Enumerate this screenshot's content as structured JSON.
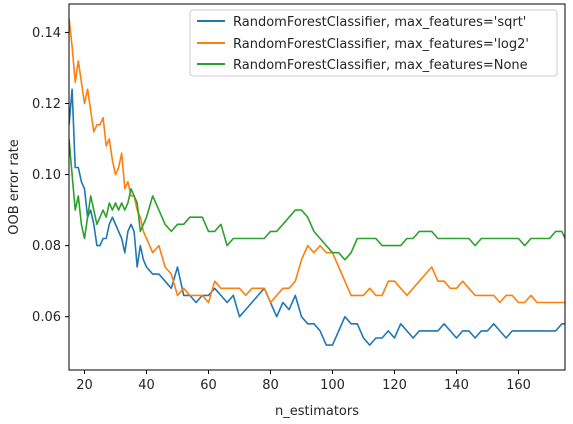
{
  "chart_data": {
    "type": "line",
    "title": "",
    "xlabel": "n_estimators",
    "ylabel": "OOB error rate",
    "xlim": [
      15,
      175
    ],
    "ylim": [
      0.045,
      0.148
    ],
    "xticks": [
      20,
      40,
      60,
      80,
      100,
      120,
      140,
      160
    ],
    "yticks": [
      0.06,
      0.08,
      0.1,
      0.12,
      0.14
    ],
    "ytick_labels": [
      "0.06",
      "0.08",
      "0.10",
      "0.12",
      "0.14"
    ],
    "grid": false,
    "legend_position": "top-right",
    "series": [
      {
        "name": "RandomForestClassifier, max_features='sqrt'",
        "color": "#1f77b4",
        "x": [
          15,
          16,
          17,
          18,
          19,
          20,
          21,
          22,
          23,
          24,
          25,
          26,
          27,
          28,
          29,
          30,
          31,
          32,
          33,
          34,
          35,
          36,
          37,
          38,
          39,
          40,
          42,
          44,
          46,
          48,
          50,
          52,
          54,
          56,
          58,
          60,
          62,
          64,
          66,
          68,
          70,
          72,
          74,
          76,
          78,
          80,
          82,
          84,
          86,
          88,
          90,
          92,
          94,
          96,
          98,
          100,
          102,
          104,
          106,
          108,
          110,
          112,
          114,
          116,
          118,
          120,
          122,
          124,
          126,
          128,
          130,
          132,
          134,
          136,
          138,
          140,
          142,
          144,
          146,
          148,
          150,
          152,
          154,
          156,
          158,
          160,
          162,
          164,
          166,
          168,
          170,
          172,
          174,
          175
        ],
        "y": [
          0.114,
          0.124,
          0.102,
          0.102,
          0.098,
          0.096,
          0.088,
          0.09,
          0.086,
          0.08,
          0.08,
          0.082,
          0.082,
          0.086,
          0.088,
          0.086,
          0.084,
          0.082,
          0.078,
          0.084,
          0.086,
          0.084,
          0.074,
          0.08,
          0.076,
          0.074,
          0.072,
          0.072,
          0.07,
          0.068,
          0.074,
          0.066,
          0.066,
          0.064,
          0.066,
          0.066,
          0.068,
          0.066,
          0.064,
          0.066,
          0.06,
          0.062,
          0.064,
          0.066,
          0.068,
          0.064,
          0.06,
          0.064,
          0.062,
          0.066,
          0.06,
          0.058,
          0.058,
          0.056,
          0.052,
          0.052,
          0.056,
          0.06,
          0.058,
          0.058,
          0.054,
          0.052,
          0.054,
          0.054,
          0.056,
          0.054,
          0.058,
          0.056,
          0.054,
          0.056,
          0.056,
          0.056,
          0.056,
          0.058,
          0.056,
          0.054,
          0.056,
          0.056,
          0.054,
          0.056,
          0.056,
          0.058,
          0.056,
          0.054,
          0.056,
          0.056,
          0.056,
          0.056,
          0.056,
          0.056,
          0.056,
          0.056,
          0.058,
          0.058
        ]
      },
      {
        "name": "RandomForestClassifier, max_features='log2'",
        "color": "#ff7f0e",
        "x": [
          15,
          16,
          17,
          18,
          19,
          20,
          21,
          22,
          23,
          24,
          25,
          26,
          27,
          28,
          29,
          30,
          31,
          32,
          33,
          34,
          35,
          36,
          37,
          38,
          39,
          40,
          42,
          44,
          46,
          48,
          50,
          52,
          54,
          56,
          58,
          60,
          62,
          64,
          66,
          68,
          70,
          72,
          74,
          76,
          78,
          80,
          82,
          84,
          86,
          88,
          90,
          92,
          94,
          96,
          98,
          100,
          102,
          104,
          106,
          108,
          110,
          112,
          114,
          116,
          118,
          120,
          122,
          124,
          126,
          128,
          130,
          132,
          134,
          136,
          138,
          140,
          142,
          144,
          146,
          148,
          150,
          152,
          154,
          156,
          158,
          160,
          162,
          164,
          166,
          168,
          170,
          172,
          174,
          175
        ],
        "y": [
          0.144,
          0.136,
          0.126,
          0.132,
          0.126,
          0.12,
          0.124,
          0.118,
          0.112,
          0.114,
          0.114,
          0.116,
          0.108,
          0.11,
          0.104,
          0.1,
          0.102,
          0.106,
          0.096,
          0.098,
          0.094,
          0.094,
          0.09,
          0.088,
          0.084,
          0.082,
          0.078,
          0.08,
          0.074,
          0.072,
          0.066,
          0.068,
          0.066,
          0.066,
          0.066,
          0.064,
          0.07,
          0.068,
          0.068,
          0.068,
          0.068,
          0.066,
          0.068,
          0.068,
          0.068,
          0.064,
          0.066,
          0.068,
          0.068,
          0.07,
          0.076,
          0.08,
          0.078,
          0.08,
          0.078,
          0.078,
          0.074,
          0.07,
          0.066,
          0.066,
          0.066,
          0.068,
          0.066,
          0.066,
          0.07,
          0.07,
          0.068,
          0.066,
          0.068,
          0.07,
          0.072,
          0.074,
          0.07,
          0.07,
          0.068,
          0.068,
          0.07,
          0.068,
          0.066,
          0.066,
          0.066,
          0.066,
          0.064,
          0.066,
          0.066,
          0.064,
          0.064,
          0.066,
          0.064,
          0.064,
          0.064,
          0.064,
          0.064,
          0.064
        ]
      },
      {
        "name": "RandomForestClassifier, max_features=None",
        "color": "#2ca02c",
        "x": [
          15,
          16,
          17,
          18,
          19,
          20,
          21,
          22,
          23,
          24,
          25,
          26,
          27,
          28,
          29,
          30,
          31,
          32,
          33,
          34,
          35,
          36,
          37,
          38,
          39,
          40,
          42,
          44,
          46,
          48,
          50,
          52,
          54,
          56,
          58,
          60,
          62,
          64,
          66,
          68,
          70,
          72,
          74,
          76,
          78,
          80,
          82,
          84,
          86,
          88,
          90,
          92,
          94,
          96,
          98,
          100,
          102,
          104,
          106,
          108,
          110,
          112,
          114,
          116,
          118,
          120,
          122,
          124,
          126,
          128,
          130,
          132,
          134,
          136,
          138,
          140,
          142,
          144,
          146,
          148,
          150,
          152,
          154,
          156,
          158,
          160,
          162,
          164,
          166,
          168,
          170,
          172,
          174,
          175
        ],
        "y": [
          0.11,
          0.1,
          0.09,
          0.094,
          0.086,
          0.082,
          0.088,
          0.094,
          0.09,
          0.086,
          0.088,
          0.09,
          0.088,
          0.092,
          0.09,
          0.092,
          0.09,
          0.092,
          0.09,
          0.092,
          0.096,
          0.094,
          0.092,
          0.084,
          0.086,
          0.088,
          0.094,
          0.09,
          0.086,
          0.084,
          0.086,
          0.086,
          0.088,
          0.088,
          0.088,
          0.084,
          0.084,
          0.086,
          0.08,
          0.082,
          0.082,
          0.082,
          0.082,
          0.082,
          0.082,
          0.084,
          0.084,
          0.086,
          0.088,
          0.09,
          0.09,
          0.088,
          0.084,
          0.082,
          0.08,
          0.078,
          0.078,
          0.076,
          0.078,
          0.082,
          0.082,
          0.082,
          0.082,
          0.08,
          0.08,
          0.08,
          0.08,
          0.082,
          0.082,
          0.084,
          0.084,
          0.084,
          0.082,
          0.082,
          0.082,
          0.082,
          0.082,
          0.082,
          0.08,
          0.082,
          0.082,
          0.082,
          0.082,
          0.082,
          0.082,
          0.082,
          0.08,
          0.082,
          0.082,
          0.082,
          0.082,
          0.084,
          0.084,
          0.082
        ]
      }
    ]
  }
}
